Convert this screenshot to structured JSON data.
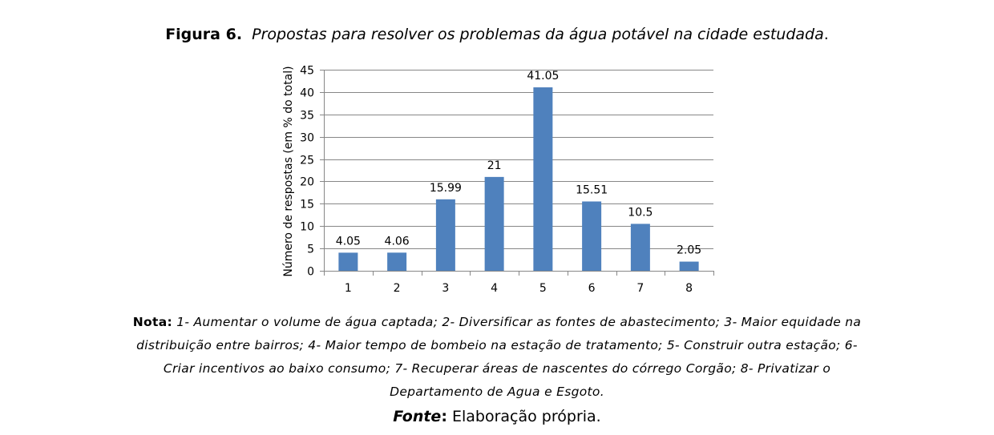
{
  "figure": {
    "label": "Figura 6.",
    "caption": "Propostas para resolver os problemas da água potável na cidade estudada",
    "caption_end": "."
  },
  "chart_data": {
    "type": "bar",
    "categories": [
      "1",
      "2",
      "3",
      "4",
      "5",
      "6",
      "7",
      "8"
    ],
    "values": [
      4.05,
      4.06,
      15.99,
      21,
      41.05,
      15.51,
      10.5,
      2.05
    ],
    "data_labels": [
      "4.05",
      "4.06",
      "15.99",
      "21",
      "41.05",
      "15.51",
      "10.5",
      "2.05"
    ],
    "ylabel": "Número de respostas (em  % do total)",
    "ylim": [
      0,
      45
    ],
    "yticks": [
      0,
      5,
      10,
      15,
      20,
      25,
      30,
      35,
      40,
      45
    ],
    "grid": true,
    "legend": "none",
    "bar_color": "#4f81bd",
    "grid_color": "#878787"
  },
  "note": {
    "label": "Nota:",
    "text": "1- Aumentar o volume de água captada; 2- Diversificar as fontes de abastecimento; 3- Maior equidade na distribuição entre bairros; 4- Maior tempo de bombeio na estação de tratamento; 5- Construir outra estação; 6- Criar incentivos ao baixo consumo; 7- Recuperar áreas de nascentes do córrego Corgão; 8- Privatizar o Departamento de Agua e Esgoto."
  },
  "source": {
    "label": "Fonte",
    "separator": ":",
    "text": "Elaboração própria."
  }
}
